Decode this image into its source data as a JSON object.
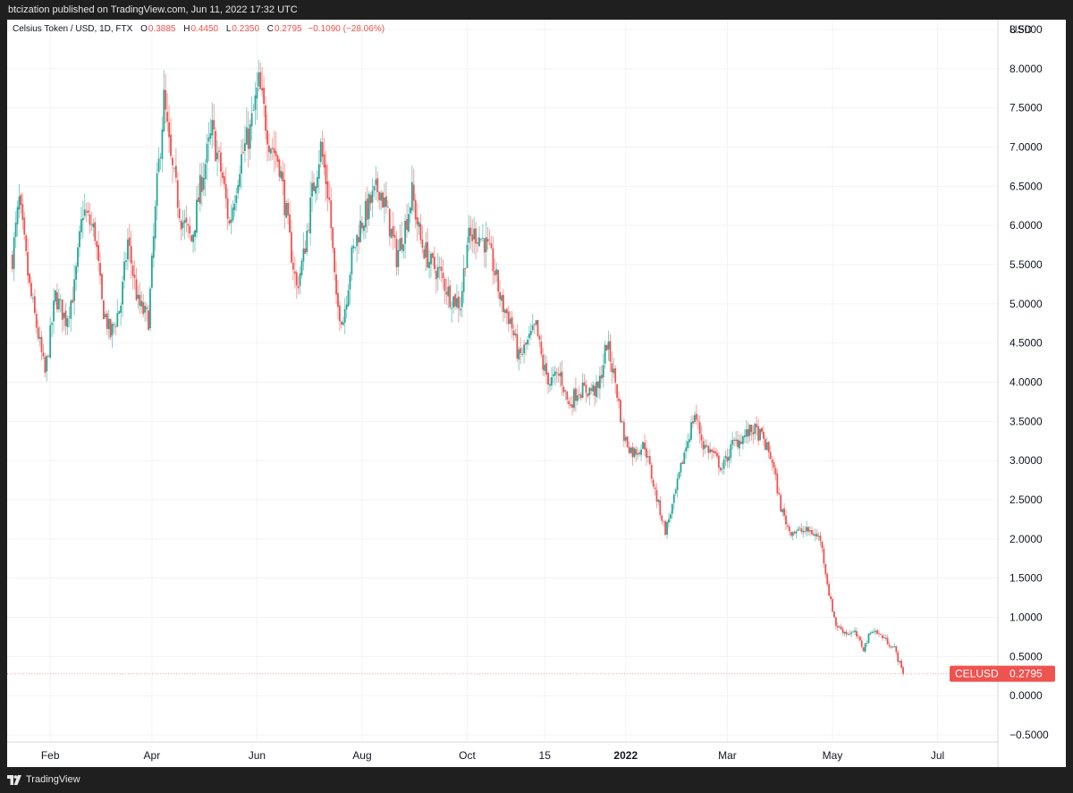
{
  "publish_info": "btcization published on TradingView.com, Jun 11, 2022 17:32 UTC",
  "legend": {
    "symbol": "Celsius Token / USD, 1D, FTX",
    "open_label": "O",
    "open": "0.3885",
    "high_label": "H",
    "high": "0.4450",
    "low_label": "L",
    "low": "0.2350",
    "close_label": "C",
    "close": "0.2795",
    "change": "−0.1090 (−28.06%)"
  },
  "price_badge": {
    "ticker": "CELUSD",
    "price": "0.2795"
  },
  "footer": {
    "brand": "TradingView"
  },
  "colors": {
    "up": "#26a69a",
    "down": "#ef5350",
    "badge": "#ef5350"
  },
  "chart_data": {
    "type": "candlestick",
    "currency_label": "USD",
    "x_ticks": [
      {
        "label": "Feb",
        "date": "2021-02-01"
      },
      {
        "label": "Apr",
        "date": "2021-04-01"
      },
      {
        "label": "Jun",
        "date": "2021-06-01"
      },
      {
        "label": "Aug",
        "date": "2021-08-01"
      },
      {
        "label": "Oct",
        "date": "2021-10-01"
      },
      {
        "label": "15",
        "date": "2021-11-15"
      },
      {
        "label": "2022",
        "date": "2022-01-01",
        "bold": true
      },
      {
        "label": "Mar",
        "date": "2022-03-01"
      },
      {
        "label": "May",
        "date": "2022-05-01"
      },
      {
        "label": "Jul",
        "date": "2022-07-01"
      }
    ],
    "x_range": [
      "2021-01-07",
      "2022-08-05"
    ],
    "y_ticks": [
      "8.5000",
      "8.0000",
      "7.5000",
      "7.0000",
      "6.5000",
      "6.0000",
      "5.5000",
      "5.0000",
      "4.5000",
      "4.0000",
      "3.5000",
      "3.0000",
      "2.5000",
      "2.0000",
      "1.5000",
      "1.0000",
      "0.5000",
      "0.0000",
      "−0.5000"
    ],
    "ylim": [
      -0.5,
      8.5
    ],
    "last_price": 0.2795,
    "close_path": [
      [
        "2021-01-10",
        5.6
      ],
      [
        "2021-01-14",
        6.3
      ],
      [
        "2021-01-20",
        5.2
      ],
      [
        "2021-01-25",
        4.6
      ],
      [
        "2021-01-29",
        4.1
      ],
      [
        "2021-02-04",
        5.1
      ],
      [
        "2021-02-10",
        4.8
      ],
      [
        "2021-02-15",
        5.2
      ],
      [
        "2021-02-20",
        6.2
      ],
      [
        "2021-02-27",
        5.9
      ],
      [
        "2021-03-03",
        5.0
      ],
      [
        "2021-03-08",
        4.6
      ],
      [
        "2021-03-14",
        5.0
      ],
      [
        "2021-03-18",
        5.8
      ],
      [
        "2021-03-24",
        5.0
      ],
      [
        "2021-03-30",
        4.8
      ],
      [
        "2021-04-04",
        6.5
      ],
      [
        "2021-04-08",
        7.6
      ],
      [
        "2021-04-12",
        6.8
      ],
      [
        "2021-04-18",
        6.1
      ],
      [
        "2021-04-24",
        5.8
      ],
      [
        "2021-04-30",
        6.6
      ],
      [
        "2021-05-06",
        7.2
      ],
      [
        "2021-05-12",
        6.6
      ],
      [
        "2021-05-16",
        6.0
      ],
      [
        "2021-05-22",
        6.8
      ],
      [
        "2021-05-28",
        7.2
      ],
      [
        "2021-06-02",
        7.8
      ],
      [
        "2021-06-08",
        7.1
      ],
      [
        "2021-06-14",
        6.8
      ],
      [
        "2021-06-20",
        5.8
      ],
      [
        "2021-06-24",
        5.2
      ],
      [
        "2021-06-28",
        5.6
      ],
      [
        "2021-07-03",
        6.4
      ],
      [
        "2021-07-08",
        7.0
      ],
      [
        "2021-07-13",
        6.3
      ],
      [
        "2021-07-17",
        5.0
      ],
      [
        "2021-07-21",
        4.8
      ],
      [
        "2021-07-26",
        5.6
      ],
      [
        "2021-07-31",
        6.0
      ],
      [
        "2021-08-06",
        6.3
      ],
      [
        "2021-08-11",
        6.5
      ],
      [
        "2021-08-16",
        6.1
      ],
      [
        "2021-08-21",
        5.6
      ],
      [
        "2021-08-26",
        6.0
      ],
      [
        "2021-08-30",
        6.4
      ],
      [
        "2021-09-04",
        5.8
      ],
      [
        "2021-09-10",
        5.5
      ],
      [
        "2021-09-15",
        5.4
      ],
      [
        "2021-09-21",
        5.1
      ],
      [
        "2021-09-27",
        5.0
      ],
      [
        "2021-10-01",
        5.8
      ],
      [
        "2021-10-06",
        5.9
      ],
      [
        "2021-10-11",
        5.8
      ],
      [
        "2021-10-16",
        5.5
      ],
      [
        "2021-10-21",
        5.0
      ],
      [
        "2021-10-26",
        4.8
      ],
      [
        "2021-10-31",
        4.3
      ],
      [
        "2021-11-05",
        4.5
      ],
      [
        "2021-11-10",
        4.7
      ],
      [
        "2021-11-14",
        4.2
      ],
      [
        "2021-11-18",
        4.0
      ],
      [
        "2021-11-24",
        4.1
      ],
      [
        "2021-11-29",
        3.7
      ],
      [
        "2021-12-04",
        3.9
      ],
      [
        "2021-12-10",
        3.9
      ],
      [
        "2021-12-16",
        3.9
      ],
      [
        "2021-12-21",
        4.5
      ],
      [
        "2021-12-26",
        4.0
      ],
      [
        "2021-12-31",
        3.3
      ],
      [
        "2022-01-05",
        3.1
      ],
      [
        "2022-01-12",
        3.2
      ],
      [
        "2022-01-18",
        2.6
      ],
      [
        "2022-01-24",
        2.1
      ],
      [
        "2022-01-29",
        2.5
      ],
      [
        "2022-02-04",
        3.1
      ],
      [
        "2022-02-10",
        3.6
      ],
      [
        "2022-02-15",
        3.2
      ],
      [
        "2022-02-20",
        3.1
      ],
      [
        "2022-02-26",
        2.9
      ],
      [
        "2022-03-04",
        3.2
      ],
      [
        "2022-03-10",
        3.3
      ],
      [
        "2022-03-16",
        3.4
      ],
      [
        "2022-03-21",
        3.3
      ],
      [
        "2022-03-27",
        3.0
      ],
      [
        "2022-04-01",
        2.4
      ],
      [
        "2022-04-06",
        2.1
      ],
      [
        "2022-04-12",
        2.1
      ],
      [
        "2022-04-18",
        2.1
      ],
      [
        "2022-04-24",
        2.0
      ],
      [
        "2022-04-29",
        1.3
      ],
      [
        "2022-05-03",
        0.9
      ],
      [
        "2022-05-09",
        0.8
      ],
      [
        "2022-05-14",
        0.8
      ],
      [
        "2022-05-19",
        0.6
      ],
      [
        "2022-05-24",
        0.85
      ],
      [
        "2022-05-30",
        0.75
      ],
      [
        "2022-06-06",
        0.6
      ],
      [
        "2022-06-11",
        0.28
      ]
    ]
  }
}
